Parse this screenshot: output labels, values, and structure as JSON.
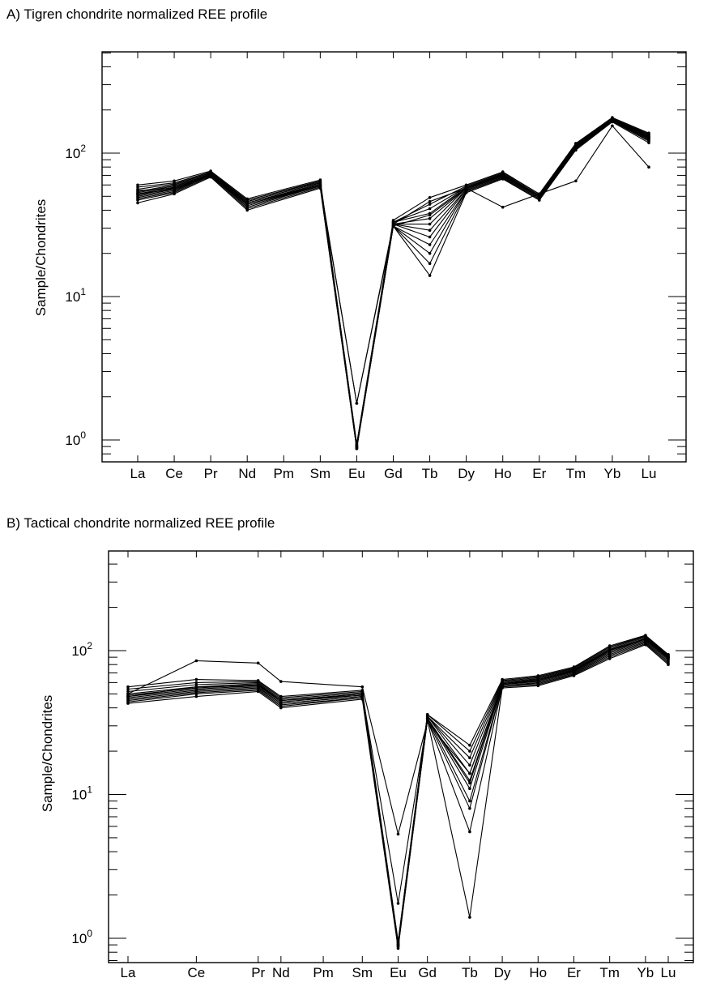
{
  "chart_data": [
    {
      "type": "line",
      "title": "A) Tigren chondrite normalized  REE profile",
      "ylabel": "Sample/Chondrites",
      "yscale": "log",
      "ylim": [
        0.6,
        500
      ],
      "ytick_labels": [
        {
          "base": "10",
          "exp": "0",
          "value": 1
        },
        {
          "base": "10",
          "exp": "1",
          "value": 10
        },
        {
          "base": "10",
          "exp": "2",
          "value": 100
        }
      ],
      "categories": [
        "La",
        "Ce",
        "Pr",
        "Nd",
        "Pm",
        "Sm",
        "Eu",
        "Gd",
        "Tb",
        "Dy",
        "Ho",
        "Er",
        "Tm",
        "Yb",
        "Lu"
      ],
      "x_positions": [
        0,
        1,
        2,
        3,
        4,
        5,
        6,
        7,
        8,
        9,
        10,
        11,
        12,
        13,
        14
      ],
      "grid": false,
      "series": [
        {
          "values": [
            45,
            52,
            68,
            40,
            null,
            57,
            0.87,
            31,
            14,
            53,
            66,
            47,
            105,
            165,
            118
          ]
        },
        {
          "values": [
            47,
            53,
            69,
            41,
            null,
            58,
            0.87,
            31,
            17,
            54,
            67,
            47,
            107,
            167,
            121
          ]
        },
        {
          "values": [
            48,
            54,
            70,
            42,
            null,
            59,
            0.88,
            31,
            20,
            55,
            68,
            48,
            108,
            168,
            123
          ]
        },
        {
          "values": [
            49,
            55,
            70,
            43,
            null,
            59,
            0.88,
            31,
            23,
            55,
            68,
            48,
            109,
            169,
            125
          ]
        },
        {
          "values": [
            50,
            56,
            71,
            44,
            null,
            60,
            0.89,
            32,
            26,
            56,
            69,
            49,
            110,
            170,
            127
          ]
        },
        {
          "values": [
            51,
            57,
            71,
            45,
            null,
            60,
            0.89,
            32,
            29,
            56,
            70,
            49,
            111,
            171,
            128
          ]
        },
        {
          "values": [
            52,
            58,
            72,
            45,
            null,
            61,
            0.9,
            32,
            32,
            57,
            70,
            50,
            112,
            172,
            130
          ]
        },
        {
          "values": [
            53,
            59,
            72,
            46,
            null,
            62,
            0.9,
            32,
            35,
            57,
            71,
            50,
            113,
            173,
            131
          ]
        },
        {
          "values": [
            54,
            60,
            73,
            46,
            null,
            62,
            0.91,
            33,
            38,
            58,
            71,
            51,
            114,
            174,
            132
          ]
        },
        {
          "values": [
            56,
            61,
            73,
            47,
            null,
            63,
            0.92,
            33,
            41,
            58,
            72,
            51,
            115,
            175,
            134
          ]
        },
        {
          "values": [
            58,
            62,
            74,
            47,
            null,
            64,
            0.93,
            33,
            44,
            59,
            73,
            52,
            116,
            176,
            136
          ]
        },
        {
          "values": [
            60,
            64,
            75,
            48,
            null,
            65,
            0.94,
            34,
            49,
            60,
            74,
            52,
            117,
            177,
            138
          ]
        },
        {
          "values": [
            55,
            57,
            71,
            44,
            null,
            60,
            1.8,
            32,
            46,
            57,
            70,
            50,
            110,
            170,
            128
          ]
        },
        {
          "values": [
            52,
            56,
            70,
            44,
            null,
            59,
            1.8,
            31,
            37,
            57,
            42,
            52,
            64,
            155,
            80
          ]
        }
      ]
    },
    {
      "type": "line",
      "title": "B) Tactical chondrite normalized  REE profile",
      "ylabel": "Sample/Chondrites",
      "yscale": "log",
      "ylim": [
        0.6,
        500
      ],
      "ytick_labels": [
        {
          "base": "10",
          "exp": "0",
          "value": 1
        },
        {
          "base": "10",
          "exp": "1",
          "value": 10
        },
        {
          "base": "10",
          "exp": "2",
          "value": 100
        }
      ],
      "categories": [
        "La",
        "Ce",
        "Pr",
        "Nd",
        "Pm",
        "Sm",
        "Eu",
        "Gd",
        "Tb",
        "Dy",
        "Ho",
        "Er",
        "Tm",
        "Yb",
        "Lu"
      ],
      "x_positions": [
        0,
        1.05,
        2,
        2.35,
        3,
        3.6,
        4.15,
        4.6,
        5.25,
        5.75,
        6.3,
        6.85,
        7.4,
        7.95,
        8.3
      ],
      "grid": false,
      "series": [
        {
          "values": [
            43,
            48,
            52,
            40,
            null,
            46,
            0.85,
            33,
            1.4,
            55,
            57,
            67,
            88,
            110,
            80
          ]
        },
        {
          "values": [
            44,
            50,
            53,
            41,
            null,
            47,
            0.87,
            33,
            5.5,
            56,
            58,
            68,
            90,
            112,
            82
          ]
        },
        {
          "values": [
            45,
            51,
            54,
            42,
            null,
            47,
            0.88,
            33,
            8,
            57,
            59,
            69,
            92,
            114,
            84
          ]
        },
        {
          "values": [
            46,
            52,
            55,
            43,
            null,
            48,
            0.89,
            34,
            9,
            57,
            60,
            70,
            94,
            116,
            86
          ]
        },
        {
          "values": [
            47,
            53,
            56,
            43,
            null,
            48,
            0.9,
            34,
            11,
            58,
            61,
            71,
            96,
            118,
            88
          ]
        },
        {
          "values": [
            48,
            54,
            57,
            44,
            null,
            49,
            0.9,
            34,
            12.5,
            59,
            62,
            72,
            98,
            120,
            89
          ]
        },
        {
          "values": [
            49,
            55,
            58,
            45,
            null,
            49,
            0.91,
            35,
            14,
            59,
            63,
            73,
            100,
            122,
            90
          ]
        },
        {
          "values": [
            50,
            56,
            59,
            45,
            null,
            50,
            0.92,
            35,
            16,
            60,
            64,
            74,
            102,
            124,
            91
          ]
        },
        {
          "values": [
            52,
            58,
            60,
            46,
            null,
            51,
            0.93,
            35,
            18,
            61,
            65,
            75,
            104,
            126,
            92
          ]
        },
        {
          "values": [
            54,
            60,
            61,
            47,
            null,
            52,
            0.94,
            36,
            20,
            62,
            66,
            76,
            106,
            127,
            93
          ]
        },
        {
          "values": [
            56,
            63,
            62,
            48,
            null,
            53,
            0.95,
            36,
            22,
            63,
            67,
            77,
            108,
            128,
            94
          ]
        },
        {
          "values": [
            50,
            85,
            82,
            61,
            null,
            56,
            5.3,
            32,
            14,
            58,
            62,
            72,
            100,
            120,
            88
          ]
        },
        {
          "values": [
            48,
            56,
            57,
            45,
            null,
            50,
            1.75,
            34,
            12,
            59,
            63,
            73,
            101,
            121,
            90
          ]
        }
      ]
    }
  ]
}
